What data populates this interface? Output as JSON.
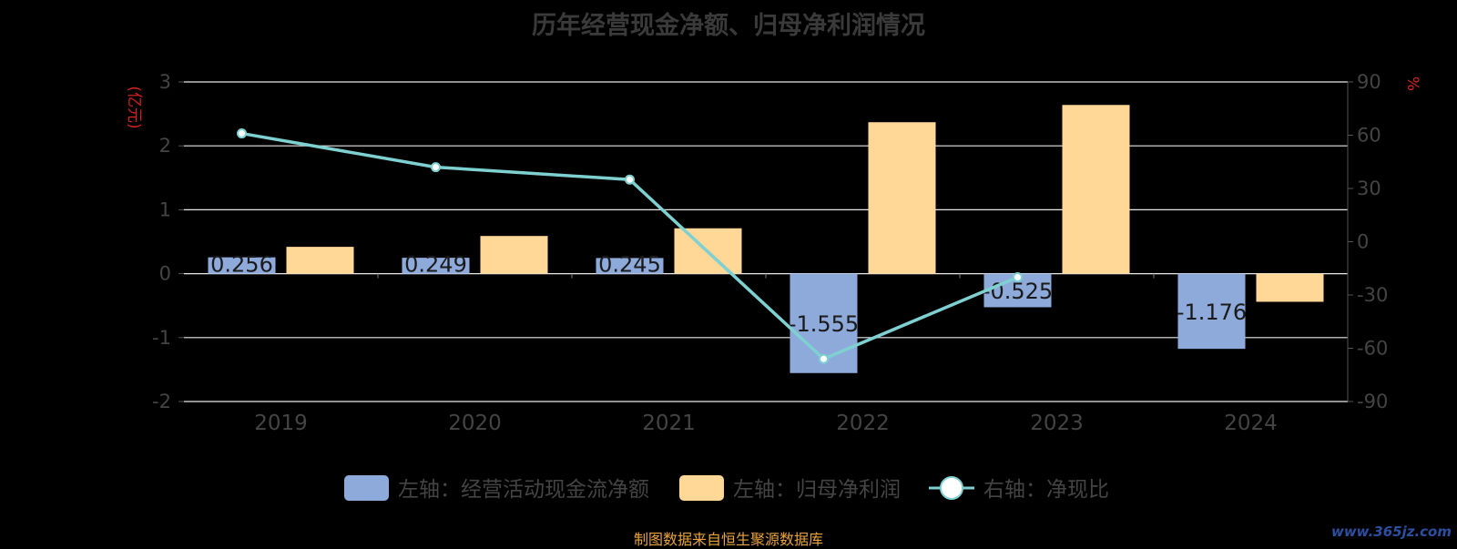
{
  "title": "历年经营现金净额、归母净利润情况",
  "source": "制图数据来自恒生聚源数据库",
  "watermark": "www.365jz.com",
  "colors": {
    "background": "#000000",
    "bar_cash": "#8eaadb",
    "bar_profit": "#ffd797",
    "line": "#7fd1d1",
    "axis_unit": "#d22222",
    "tick_text": "#444444",
    "grid": "#e8e8e8"
  },
  "chart_data": {
    "type": "bar",
    "title": "历年经营现金净额、归母净利润情况",
    "categories": [
      "2019",
      "2020",
      "2021",
      "2022",
      "2023",
      "2024"
    ],
    "left_axis": {
      "unit": "(亿元)",
      "ylim": [
        -2,
        3
      ],
      "ticks": [
        -2,
        -1,
        0,
        1,
        2,
        3
      ]
    },
    "right_axis": {
      "unit": "%",
      "ylim": [
        -90,
        90
      ],
      "ticks": [
        -90,
        -60,
        -30,
        0,
        30,
        60,
        90
      ]
    },
    "grid": true,
    "legend_position": "bottom",
    "series": [
      {
        "name": "左轴：经营活动现金流净额",
        "type": "bar",
        "axis": "left",
        "values": [
          0.256,
          0.249,
          0.245,
          -1.555,
          -0.525,
          -1.176
        ],
        "labels": [
          "0.256",
          "0.249",
          "0.245",
          "-1.555",
          "-0.525",
          "-1.176"
        ]
      },
      {
        "name": "左轴：归母净利润",
        "type": "bar",
        "axis": "left",
        "values": [
          0.42,
          0.59,
          0.71,
          2.37,
          2.64,
          -0.44
        ]
      },
      {
        "name": "右轴：净现比",
        "type": "line",
        "axis": "right",
        "values": [
          61,
          42,
          35,
          -66,
          -20,
          null
        ]
      }
    ]
  }
}
